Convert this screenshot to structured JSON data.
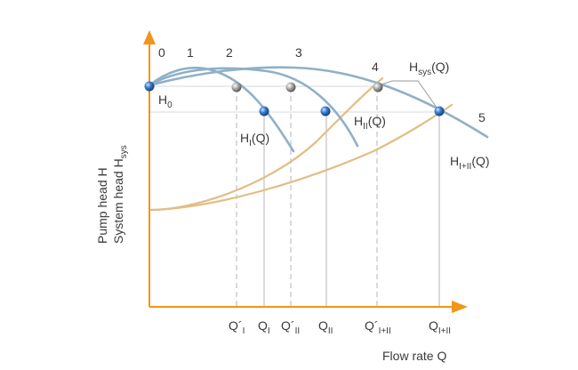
{
  "axes": {
    "y_label_line1": "Pump head H",
    "y_label_line2_main": "System head H",
    "y_label_line2_sub": "sys",
    "x_label": "Flow rate Q"
  },
  "curve_labels": {
    "H0": {
      "main": "H",
      "sub": "0"
    },
    "HI": {
      "main": "H",
      "sub": "I",
      "tail": "(Q)"
    },
    "HII": {
      "main": "H",
      "sub": "II",
      "tail": "(Q)"
    },
    "HIplusII": {
      "main": "H",
      "sub": "I+II",
      "tail": "(Q)"
    },
    "Hsys": {
      "main": "H",
      "sub": "sys",
      "tail": "(Q)"
    }
  },
  "operating_points": [
    "0",
    "1",
    "2",
    "3",
    "4",
    "5"
  ],
  "x_ticks": [
    {
      "main": "Q´",
      "sub": "I"
    },
    {
      "main": "Q",
      "sub": "I"
    },
    {
      "main": "Q´",
      "sub": "II"
    },
    {
      "main": "Q",
      "sub": "II"
    },
    {
      "main": "Q´",
      "sub": "I+II"
    },
    {
      "main": "Q",
      "sub": "I+II"
    }
  ],
  "colors": {
    "axis": "#f29418",
    "pump_curve": "#8fb0c8",
    "system_curve": "#e0be84",
    "marker_blue": "#2a6fbf",
    "marker_grey": "#9a9a9a"
  }
}
